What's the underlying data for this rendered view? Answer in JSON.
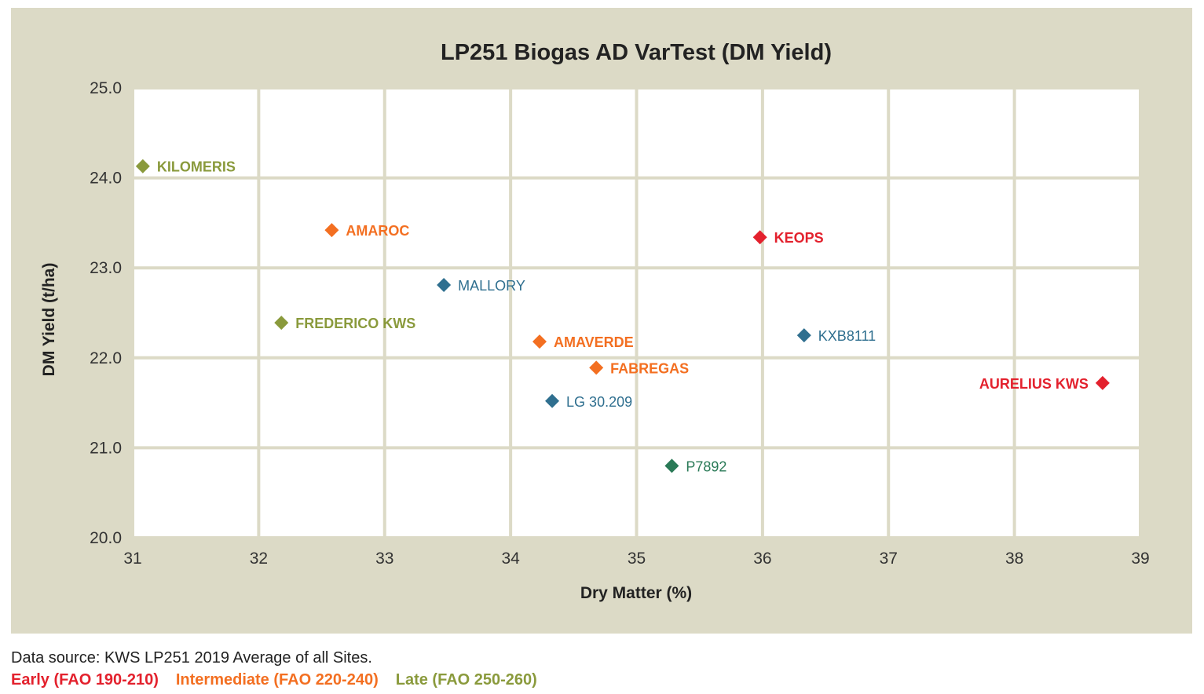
{
  "chart_data": {
    "type": "scatter",
    "title": "LP251 Biogas AD VarTest (DM Yield)",
    "xlabel": "Dry Matter (%)",
    "ylabel": "DM Yield (t/ha)",
    "xlim": [
      31,
      39
    ],
    "ylim": [
      20.0,
      25.0
    ],
    "x_ticks": [
      "31",
      "32",
      "33",
      "34",
      "35",
      "36",
      "37",
      "38",
      "39"
    ],
    "y_ticks": [
      "20.0",
      "21.0",
      "22.0",
      "23.0",
      "24.0",
      "25.0"
    ],
    "grid": true,
    "groups": {
      "early": "#e3212d",
      "intermediate": "#f36f21",
      "late": "#8a9a3c",
      "blue": "#2f6f8f",
      "darkgreen": "#2a7a57"
    },
    "points": [
      {
        "label": "KILOMERIS",
        "x": 31.08,
        "y": 24.13,
        "group": "late",
        "bold": true,
        "anchor": "right"
      },
      {
        "label": "AMAROC",
        "x": 32.58,
        "y": 23.42,
        "group": "intermediate",
        "bold": true,
        "anchor": "right"
      },
      {
        "label": "KEOPS",
        "x": 35.98,
        "y": 23.34,
        "group": "early",
        "bold": true,
        "anchor": "right"
      },
      {
        "label": "MALLORY",
        "x": 33.47,
        "y": 22.81,
        "group": "blue",
        "bold": false,
        "anchor": "right"
      },
      {
        "label": "FREDERICO KWS",
        "x": 32.18,
        "y": 22.39,
        "group": "late",
        "bold": true,
        "anchor": "right"
      },
      {
        "label": "KXB8111",
        "x": 36.33,
        "y": 22.25,
        "group": "blue",
        "bold": false,
        "anchor": "right"
      },
      {
        "label": "AMAVERDE",
        "x": 34.23,
        "y": 22.18,
        "group": "intermediate",
        "bold": true,
        "anchor": "right"
      },
      {
        "label": "FABREGAS",
        "x": 34.68,
        "y": 21.89,
        "group": "intermediate",
        "bold": true,
        "anchor": "right"
      },
      {
        "label": "AURELIUS KWS",
        "x": 38.7,
        "y": 21.72,
        "group": "early",
        "bold": true,
        "anchor": "left"
      },
      {
        "label": "LG 30.209",
        "x": 34.33,
        "y": 21.52,
        "group": "blue",
        "bold": false,
        "anchor": "right"
      },
      {
        "label": "P7892",
        "x": 35.28,
        "y": 20.8,
        "group": "darkgreen",
        "bold": false,
        "anchor": "right"
      }
    ]
  },
  "footer": {
    "source": "Data source: KWS LP251 2019 Average of all Sites.",
    "legend": [
      {
        "label": "Early (FAO 190-210)",
        "color": "#e3212d"
      },
      {
        "label": "Intermediate (FAO 220-240)",
        "color": "#f36f21"
      },
      {
        "label": "Late (FAO 250-260)",
        "color": "#8a9a3c"
      }
    ]
  }
}
